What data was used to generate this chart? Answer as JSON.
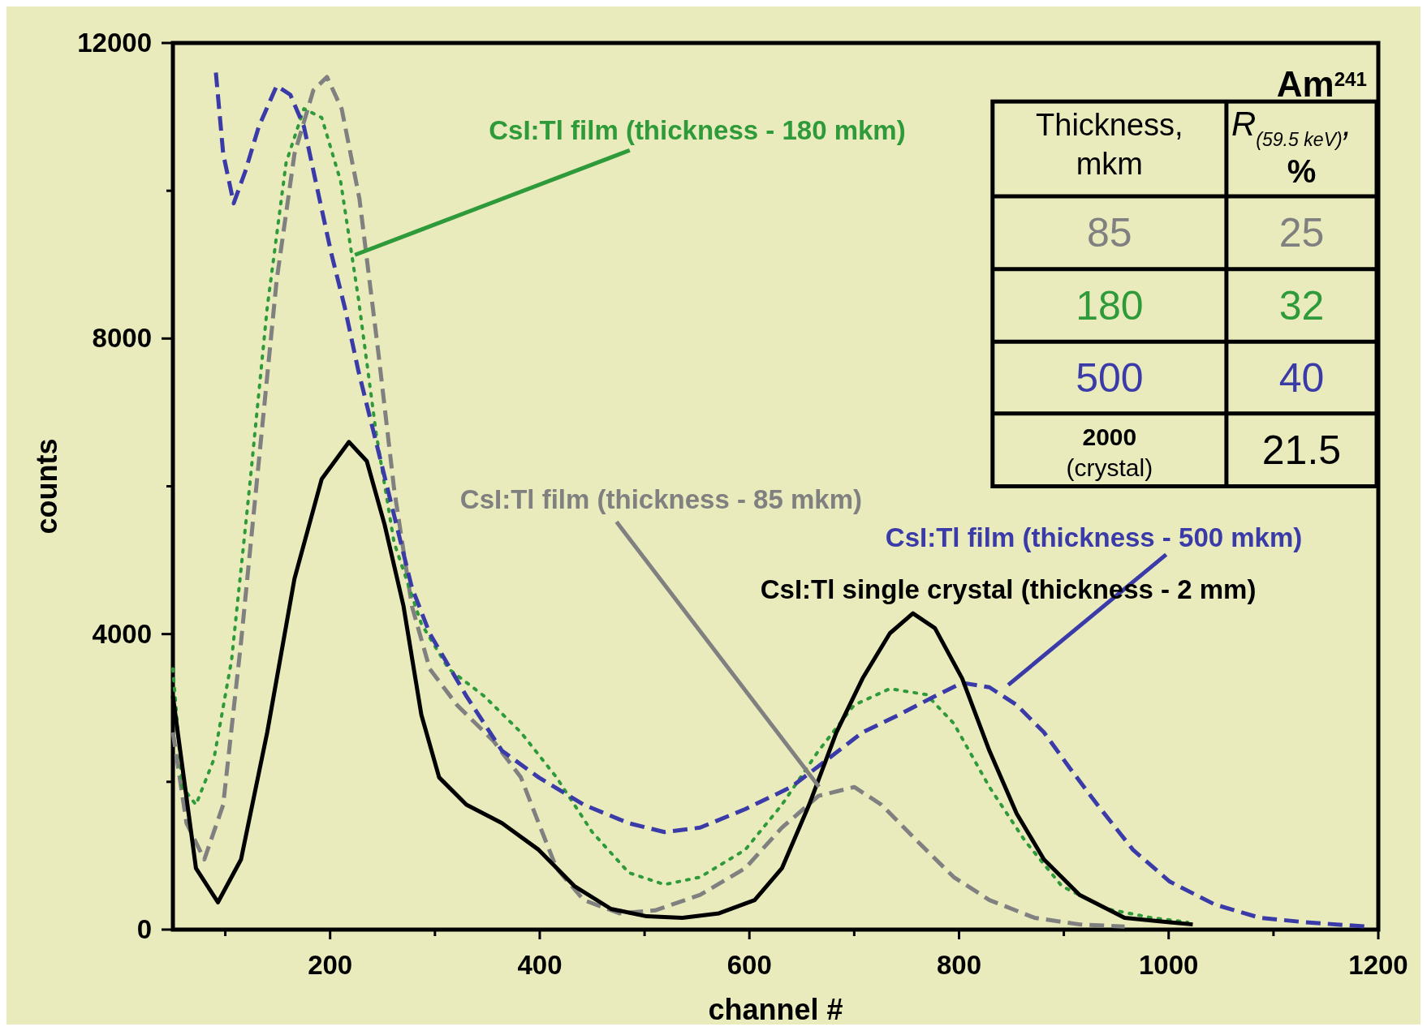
{
  "chart_data": {
    "type": "line",
    "xlabel": "channel #",
    "ylabel": "counts",
    "xlim": [
      50,
      1200
    ],
    "ylim": [
      0,
      12000
    ],
    "xticks": [
      {
        "value": 100,
        "label": null
      },
      200,
      {
        "value": 300,
        "label": null
      },
      400,
      {
        "value": 500,
        "label": null
      },
      600,
      {
        "value": 700,
        "label": null
      },
      800,
      {
        "value": 900,
        "label": null
      },
      1000,
      {
        "value": 1100,
        "label": null
      },
      1200
    ],
    "yticks": [
      0,
      {
        "value": 2000,
        "label": null
      },
      4000,
      {
        "value": 6000,
        "label": null
      },
      8000,
      {
        "value": 10000,
        "label": null
      },
      12000
    ],
    "grid": false,
    "legend": false,
    "marker": "none",
    "series": [
      {
        "name": "CsI:Tl film (thickness - 85 mkm)",
        "color": "#808080",
        "line_style": "dashed",
        "x": [
          50,
          63,
          80,
          98,
          115,
          132,
          149,
          166,
          184,
          197,
          211,
          228,
          246,
          261,
          278,
          295,
          321,
          356,
          382,
          399,
          416,
          442,
          476,
          510,
          553,
          596,
          631,
          666,
          700,
          726,
          760,
          795,
          829,
          872,
          915,
          958
        ],
        "values": [
          2670,
          1440,
          950,
          1690,
          3890,
          6340,
          8790,
          10500,
          11360,
          11540,
          11110,
          9890,
          7810,
          5970,
          4380,
          3530,
          3040,
          2550,
          2060,
          1440,
          830,
          400,
          220,
          260,
          470,
          830,
          1380,
          1810,
          1930,
          1690,
          1200,
          710,
          400,
          160,
          70,
          40
        ]
      },
      {
        "name": "CsI:Tl film (thickness - 180 mkm)",
        "color": "#2e9a3a",
        "line_style": "dotted",
        "x": [
          50,
          59,
          72,
          89,
          106,
          123,
          140,
          158,
          175,
          192,
          210,
          227,
          244,
          261,
          287,
          313,
          347,
          382,
          416,
          450,
          485,
          519,
          553,
          596,
          631,
          666,
          700,
          734,
          769,
          795,
          829,
          863,
          898,
          941,
          984,
          1018
        ],
        "values": [
          3530,
          1930,
          1690,
          2300,
          3650,
          5970,
          8420,
          10380,
          11110,
          10990,
          10130,
          8540,
          6710,
          5240,
          4140,
          3530,
          3160,
          2670,
          2060,
          1320,
          770,
          610,
          710,
          1080,
          1690,
          2420,
          3040,
          3260,
          3180,
          2790,
          1930,
          1200,
          590,
          280,
          160,
          100
        ]
      },
      {
        "name": "CsI:Tl film (thickness - 500 mkm)",
        "color": "#3a3aa8",
        "line_style": "dashed",
        "x": [
          91,
          98,
          108,
          119,
          132,
          149,
          162,
          175,
          188,
          201,
          214,
          227,
          244,
          261,
          278,
          295,
          330,
          364,
          399,
          442,
          485,
          519,
          553,
          596,
          640,
          674,
          708,
          743,
          777,
          803,
          829,
          855,
          881,
          906,
          932,
          966,
          1001,
          1044,
          1087,
          1130,
          1190
        ],
        "values": [
          11600,
          10500,
          9830,
          10260,
          10870,
          11420,
          11300,
          10870,
          10010,
          9160,
          8420,
          7560,
          6590,
          5610,
          4630,
          4010,
          3160,
          2420,
          2060,
          1690,
          1440,
          1320,
          1380,
          1630,
          1930,
          2300,
          2670,
          2910,
          3160,
          3340,
          3280,
          3040,
          2670,
          2180,
          1690,
          1080,
          650,
          340,
          160,
          100,
          40
        ]
      },
      {
        "name": "CsI:Tl single crystal (thickness - 2 mm)",
        "color": "#000000",
        "line_style": "solid",
        "x": [
          50,
          72,
          93,
          115,
          140,
          166,
          192,
          218,
          235,
          252,
          270,
          287,
          304,
          330,
          364,
          399,
          433,
          468,
          502,
          536,
          571,
          605,
          631,
          657,
          683,
          708,
          734,
          756,
          777,
          803,
          829,
          855,
          881,
          915,
          958,
          1001,
          1023
        ],
        "values": [
          3160,
          830,
          370,
          950,
          2670,
          4750,
          6100,
          6600,
          6340,
          5480,
          4380,
          2910,
          2060,
          1690,
          1440,
          1080,
          590,
          280,
          180,
          160,
          220,
          400,
          830,
          1690,
          2670,
          3400,
          4010,
          4280,
          4080,
          3400,
          2420,
          1570,
          950,
          470,
          160,
          100,
          70
        ]
      }
    ],
    "annotations": [
      "Am$^{241}$",
      "Thickness, mkm",
      "R$_{(59.5 keV)}$, %",
      "85",
      "25",
      "180",
      "32",
      "500",
      "40",
      "2000 (crystal)",
      "21.5"
    ]
  }
}
